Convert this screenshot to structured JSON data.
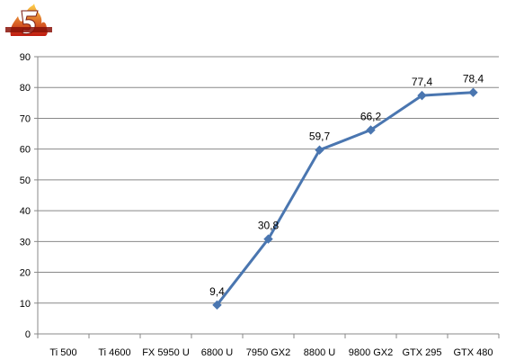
{
  "logo": {
    "text": "",
    "icon": "flame-number-logo"
  },
  "chart_data": {
    "type": "line",
    "categories": [
      "Ti 500",
      "Ti 4600",
      "FX 5950 U",
      "6800 U",
      "7950 GX2",
      "8800 U",
      "9800 GX2",
      "GTX 295",
      "GTX 480"
    ],
    "series": [
      {
        "values": [
          null,
          null,
          null,
          9.4,
          30.8,
          59.7,
          66.2,
          77.4,
          78.4
        ],
        "labels": [
          "",
          "",
          "",
          "9,4",
          "30,8",
          "59,7",
          "66,2",
          "77,4",
          "78,4"
        ],
        "color": "#4a76b0",
        "marker": "diamond"
      }
    ],
    "ylim": [
      0,
      90
    ],
    "yticks": [
      "0",
      "10",
      "20",
      "30",
      "40",
      "50",
      "60",
      "70",
      "80",
      "90"
    ],
    "grid": true,
    "legend": "none",
    "title": "",
    "xlabel": "",
    "ylabel": ""
  }
}
